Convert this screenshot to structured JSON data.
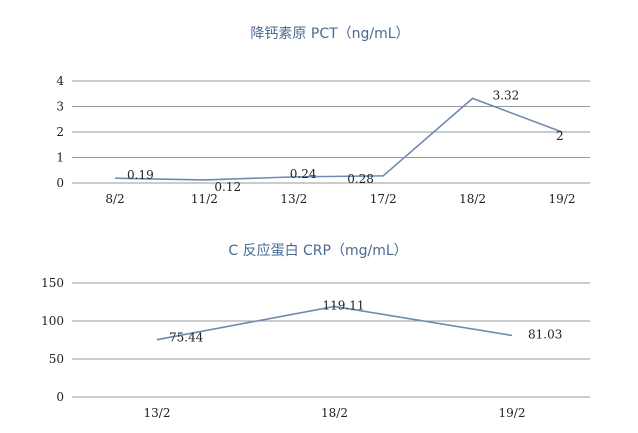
{
  "chart_data": [
    {
      "type": "line",
      "title": "降钙素原 PCT（ng/mL）",
      "categories": [
        "8/2",
        "11/2",
        "13/2",
        "17/2",
        "18/2",
        "19/2"
      ],
      "series": [
        {
          "values": [
            0.19,
            0.12,
            0.24,
            0.28,
            3.32,
            2
          ]
        }
      ],
      "data_labels": [
        "0.19",
        "0.12",
        "0.24",
        "0.28",
        "3.32",
        "2"
      ],
      "y_ticks": [
        "0",
        "1",
        "2",
        "3",
        "4"
      ],
      "ylim": [
        0,
        4
      ],
      "grid": true,
      "line_color": "#6f8bb0"
    },
    {
      "type": "line",
      "title": "C 反应蛋白 CRP（mg/mL）",
      "categories": [
        "13/2",
        "18/2",
        "19/2"
      ],
      "series": [
        {
          "values": [
            75.44,
            119.11,
            81.03
          ]
        }
      ],
      "data_labels": [
        "75.44",
        "119.11",
        "81.03"
      ],
      "y_ticks": [
        "0",
        "50",
        "100",
        "150"
      ],
      "ylim": [
        0,
        150
      ],
      "grid": true,
      "line_color": "#6f8bb0"
    }
  ]
}
